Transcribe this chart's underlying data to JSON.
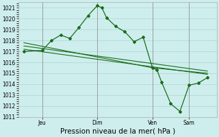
{
  "background_color": "#ceeeed",
  "grid_color": "#aed4d3",
  "line_color": "#1a6b1a",
  "xlabel": "Pression niveau de la mer( hPa )",
  "ylim": [
    1011,
    1021.5
  ],
  "yticks": [
    1011,
    1012,
    1013,
    1014,
    1015,
    1016,
    1017,
    1018,
    1019,
    1020,
    1021
  ],
  "day_labels": [
    "Jeu",
    "Dim",
    "Ven",
    "Sam"
  ],
  "day_positions": [
    1,
    4,
    7,
    9
  ],
  "vline_positions": [
    1,
    4,
    7,
    9
  ],
  "forecast_x": [
    0,
    1,
    1.5,
    2,
    2.5,
    3,
    3.5,
    4,
    4.25,
    4.5,
    5,
    5.5,
    6,
    6.5,
    7,
    7.25,
    7.5,
    8,
    8.5,
    9,
    9.5,
    10
  ],
  "forecast_y": [
    1017.0,
    1017.1,
    1018.0,
    1018.5,
    1018.2,
    1019.2,
    1020.3,
    1021.2,
    1021.0,
    1020.1,
    1019.3,
    1018.8,
    1017.9,
    1018.3,
    1015.5,
    1015.3,
    1014.2,
    1012.2,
    1011.5,
    1013.9,
    1014.1,
    1014.6
  ],
  "trend1_x": [
    0,
    10
  ],
  "trend1_y": [
    1017.5,
    1015.2
  ],
  "trend2_x": [
    0,
    10
  ],
  "trend2_y": [
    1017.2,
    1014.9
  ],
  "trend3_x": [
    0,
    7,
    10
  ],
  "trend3_y": [
    1017.8,
    1015.5,
    1015.0
  ],
  "xlim": [
    -0.3,
    10.5
  ],
  "ylabel_fontsize": 5.5,
  "xlabel_fontsize": 7.5,
  "tick_fontsize": 5.5,
  "figwidth": 3.2,
  "figheight": 2.0,
  "dpi": 100
}
